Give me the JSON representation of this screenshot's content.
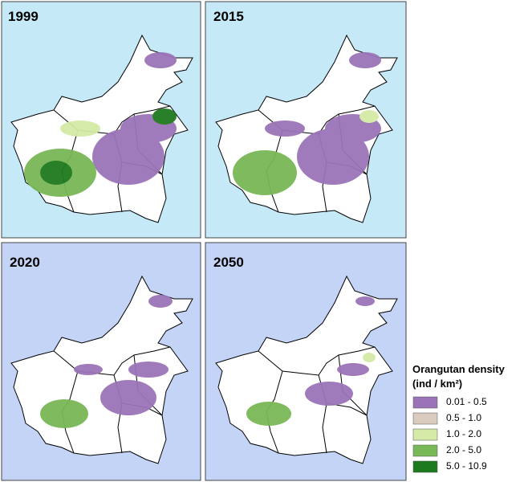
{
  "panels": [
    {
      "label": "1999"
    },
    {
      "label": "2015"
    },
    {
      "label": "2020"
    },
    {
      "label": "2050"
    }
  ],
  "legend": {
    "title": "Orangutan density",
    "unit": "(ind / km²)",
    "items": [
      {
        "label": "0.01 - 0.5",
        "color": "#9b74b8"
      },
      {
        "label": "0.5 - 1.0",
        "color": "#d9cbbd"
      },
      {
        "label": "1.0 - 2.0",
        "color": "#d4eaa6"
      },
      {
        "label": "2.0 - 5.0",
        "color": "#79b856"
      },
      {
        "label": "5.0 - 10.9",
        "color": "#1e7a1e"
      }
    ]
  }
}
